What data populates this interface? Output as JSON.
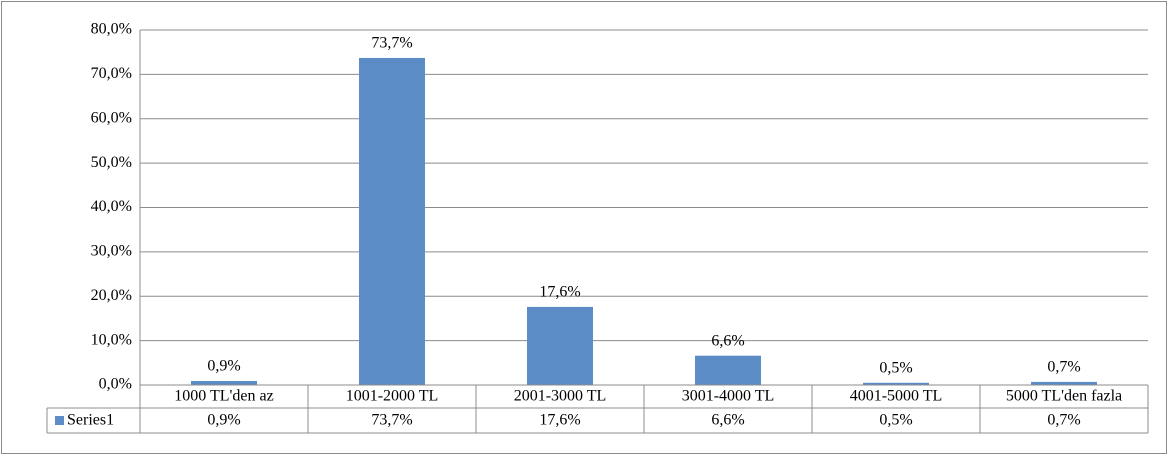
{
  "chart_data": {
    "type": "bar",
    "categories": [
      "1000 TL'den az",
      "1001-2000 TL",
      "2001-3000 TL",
      "3001-4000 TL",
      "4001-5000 TL",
      "5000 TL'den fazla"
    ],
    "series": [
      {
        "name": "Series1",
        "color": "#5b8cc6",
        "values": [
          0.9,
          73.7,
          17.6,
          6.6,
          0.5,
          0.7
        ],
        "value_labels": [
          "0,9%",
          "73,7%",
          "17,6%",
          "6,6%",
          "0,5%",
          "0,7%"
        ]
      }
    ],
    "ylim": [
      0,
      80
    ],
    "yticks": [
      {
        "value": 0,
        "label": "0,0%"
      },
      {
        "value": 10,
        "label": "10,0%"
      },
      {
        "value": 20,
        "label": "20,0%"
      },
      {
        "value": 30,
        "label": "30,0%"
      },
      {
        "value": 40,
        "label": "40,0%"
      },
      {
        "value": 50,
        "label": "50,0%"
      },
      {
        "value": 60,
        "label": "60,0%"
      },
      {
        "value": 70,
        "label": "70,0%"
      },
      {
        "value": 80,
        "label": "80,0%"
      }
    ],
    "grid": true,
    "data_table": true
  }
}
